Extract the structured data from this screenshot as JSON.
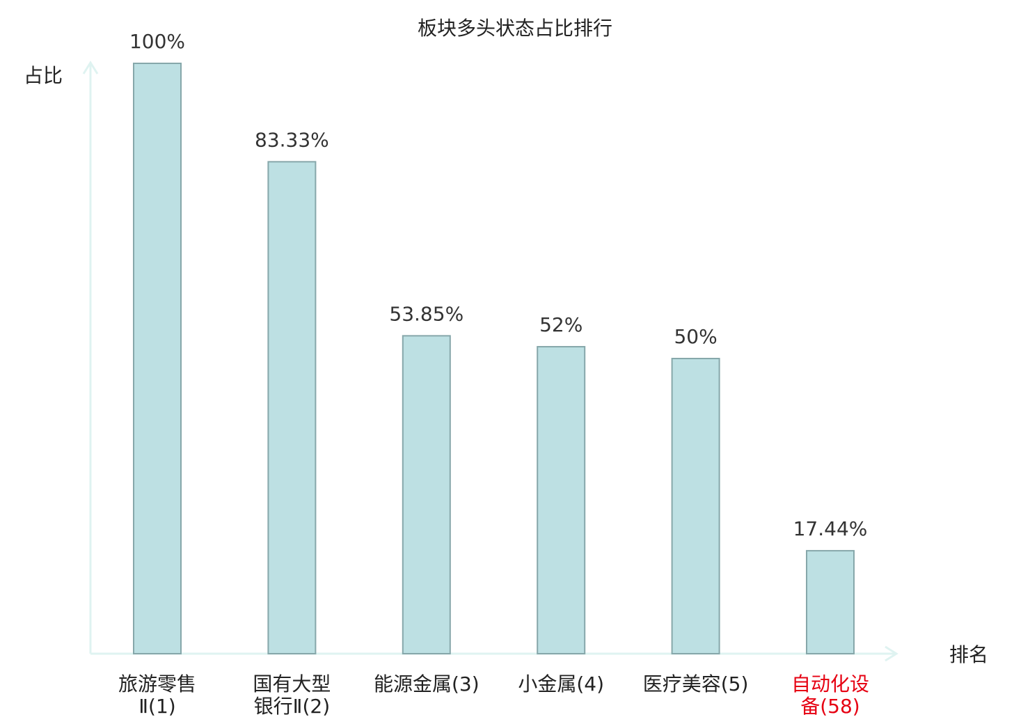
{
  "chart_data": {
    "type": "bar",
    "title": "板块多头状态占比排行",
    "y_label": "占比",
    "x_label": "排名",
    "categories": [
      [
        "旅游零售",
        "Ⅱ(1)"
      ],
      [
        "国有大型",
        "银行Ⅱ(2)"
      ],
      [
        "能源金属(3)"
      ],
      [
        "小金属(4)"
      ],
      [
        "医疗美容(5)"
      ],
      [
        "自动化设",
        "备(58)"
      ]
    ],
    "category_colors": [
      "#222222",
      "#222222",
      "#222222",
      "#222222",
      "#222222",
      "#e60012"
    ],
    "values": [
      100,
      83.33,
      53.85,
      52,
      50,
      17.44
    ],
    "value_labels": [
      "100%",
      "83.33%",
      "53.85%",
      "52%",
      "50%",
      "17.44%"
    ],
    "color": "#bde0e3",
    "edge_color": "#86a7aa",
    "axis_color": "#dff3f1",
    "ylim": [
      0,
      100
    ]
  }
}
